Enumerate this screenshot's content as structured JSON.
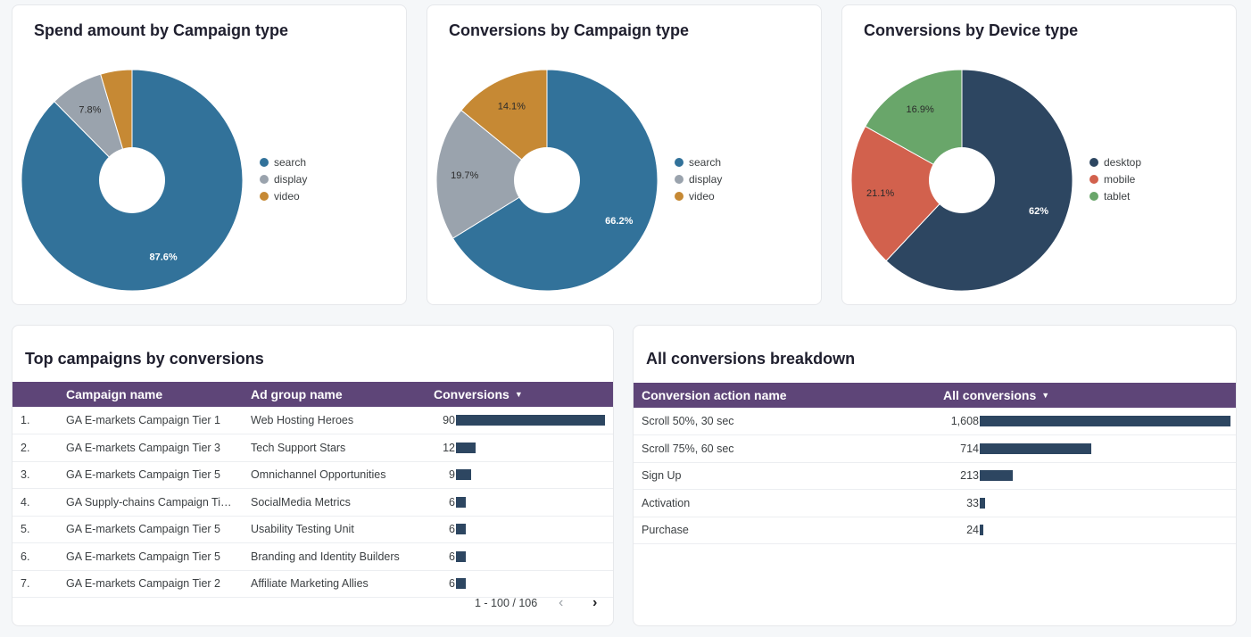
{
  "colors": {
    "search": "#32729a",
    "display": "#9aa3ad",
    "video": "#c68934",
    "desktop": "#2d4661",
    "mobile": "#d2614d",
    "tablet": "#69a66a",
    "header_bg": "#5e4578",
    "bar": "#2d4661"
  },
  "spend_chart": {
    "title": "Spend amount by Campaign type",
    "chart_data": {
      "type": "pie",
      "labels": [
        "search",
        "display",
        "video"
      ],
      "values": [
        87.6,
        7.8,
        4.6
      ],
      "value_labels": [
        "87.6%",
        "7.8%",
        ""
      ],
      "legend_position": "right"
    }
  },
  "conv_type_chart": {
    "title": "Conversions by Campaign type",
    "chart_data": {
      "type": "pie",
      "labels": [
        "search",
        "display",
        "video"
      ],
      "values": [
        66.2,
        19.7,
        14.1
      ],
      "value_labels": [
        "66.2%",
        "19.7%",
        "14.1%"
      ],
      "legend_position": "right"
    }
  },
  "conv_device_chart": {
    "title": "Conversions by Device type",
    "chart_data": {
      "type": "pie",
      "labels": [
        "desktop",
        "mobile",
        "tablet"
      ],
      "values": [
        62,
        21.1,
        16.9
      ],
      "value_labels": [
        "62%",
        "21.1%",
        "16.9%"
      ],
      "legend_position": "right"
    }
  },
  "top_campaigns": {
    "title": "Top campaigns by conversions",
    "columns": [
      "Campaign name",
      "Ad group name",
      "Conversions"
    ],
    "rows": [
      {
        "idx": "1.",
        "campaign": "GA E-markets Campaign Tier 1",
        "adgroup": "Web Hosting Heroes",
        "conversions": 90
      },
      {
        "idx": "2.",
        "campaign": "GA E-markets Campaign Tier 3",
        "adgroup": "Tech Support Stars",
        "conversions": 12
      },
      {
        "idx": "3.",
        "campaign": "GA E-markets Campaign Tier 5",
        "adgroup": "Omnichannel Opportunities",
        "conversions": 9
      },
      {
        "idx": "4.",
        "campaign": "GA Supply-chains Campaign Tie...",
        "adgroup": "SocialMedia Metrics",
        "conversions": 6
      },
      {
        "idx": "5.",
        "campaign": "GA E-markets Campaign Tier 5",
        "adgroup": "Usability Testing Unit",
        "conversions": 6
      },
      {
        "idx": "6.",
        "campaign": "GA E-markets Campaign Tier 5",
        "adgroup": "Branding and Identity Builders",
        "conversions": 6
      },
      {
        "idx": "7.",
        "campaign": "GA E-markets Campaign Tier 2",
        "adgroup": "Affiliate Marketing Allies",
        "conversions": 6
      }
    ],
    "pager": "1 - 100 / 106",
    "prev_icon": "chevron-left-icon",
    "next_icon": "chevron-right-icon"
  },
  "breakdown": {
    "title": "All conversions breakdown",
    "columns": [
      "Conversion action name",
      "All conversions"
    ],
    "rows": [
      {
        "name": "Scroll 50%, 30 sec",
        "value": 1608,
        "label": "1,608"
      },
      {
        "name": "Scroll 75%, 60 sec",
        "value": 714,
        "label": "714"
      },
      {
        "name": "Sign Up",
        "value": 213,
        "label": "213"
      },
      {
        "name": "Activation",
        "value": 33,
        "label": "33"
      },
      {
        "name": "Purchase",
        "value": 24,
        "label": "24"
      }
    ]
  }
}
